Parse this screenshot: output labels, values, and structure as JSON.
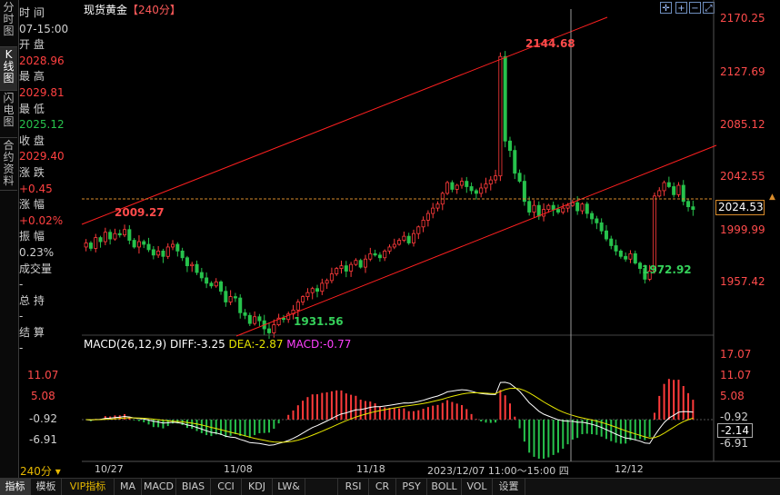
{
  "left_tabs": [
    "分时图",
    "K线图",
    "闪电图",
    "合约资料"
  ],
  "info": {
    "time_label": "时 间",
    "time_value": "07-15:00",
    "open_label": "开 盘",
    "open_value": "2028.96",
    "high_label": "最 高",
    "high_value": "2029.81",
    "low_label": "最 低",
    "low_value": "2025.12",
    "close_label": "收 盘",
    "close_value": "2029.40",
    "change_label": "涨 跌",
    "change_value": "+0.45",
    "pct_label": "涨 幅",
    "pct_value": "+0.02%",
    "amp_label": "振 幅",
    "amp_value": "0.23%",
    "vol_label": "成交量",
    "vol_value": "-",
    "oi_label": "总 持",
    "oi_value": "-",
    "settle_label": "结 算",
    "settle_value": "-"
  },
  "title": {
    "name": "现货黄金",
    "period": "【240分】"
  },
  "price_axis": [
    "2170.25",
    "2127.69",
    "2085.12",
    "2042.55",
    "1999.99",
    "1957.42"
  ],
  "current_price": "2024.53",
  "annotations": {
    "high": "2144.68",
    "left": "2009.27",
    "low1": "1931.56",
    "low2": "1972.92"
  },
  "macd_legend": {
    "name": "MACD(26,12,9)",
    "diff": "DIFF:-3.25",
    "dea": "DEA:-2.87",
    "macd": "MACD:-0.77"
  },
  "macd_axis_left": [
    "11.07",
    "5.08",
    "-0.92",
    "-6.91"
  ],
  "macd_axis_right": [
    "17.07",
    "11.07",
    "5.08",
    "-0.92",
    "-2.14",
    "-6.91"
  ],
  "date_axis": [
    "10/27",
    "11/08",
    "11/18",
    "2023/12/07 11:00～15:00 四",
    "12/12"
  ],
  "period_label": "240分",
  "bottom_tabs": [
    "指标",
    "模板",
    "VIP指标",
    "MA",
    "MACD",
    "BIAS",
    "CCI",
    "KDJ",
    "LW&",
    "RSI",
    "CR",
    "PSY",
    "BOLL",
    "VOL",
    "设置"
  ],
  "colors": {
    "up": "#ff3b3b",
    "down": "#27c24c",
    "diff": "#ffffff",
    "dea": "#e6e600",
    "macd": "#ff40ff",
    "bg": "#000000"
  },
  "chart_data": {
    "type": "candlestick",
    "price_range": [
      1936,
      2175
    ],
    "trend_lines": "red parallel channel",
    "closes": [
      2002,
      1998,
      2006,
      2003,
      2010,
      2005,
      2009,
      2008,
      2012,
      2004,
      1999,
      2003,
      2001,
      1997,
      1993,
      1996,
      1992,
      1999,
      2001,
      1996,
      1991,
      1985,
      1986,
      1980,
      1976,
      1972,
      1970,
      1973,
      1966,
      1958,
      1962,
      1961,
      1950,
      1948,
      1942,
      1947,
      1944,
      1938,
      1935,
      1941,
      1946,
      1945,
      1949,
      1952,
      1958,
      1962,
      1965,
      1968,
      1966,
      1972,
      1974,
      1979,
      1983,
      1985,
      1981,
      1986,
      1989,
      1984,
      1990,
      1994,
      1993,
      1991,
      1996,
      1999,
      2001,
      2004,
      2007,
      2002,
      2009,
      2014,
      2019,
      2024,
      2028,
      2031,
      2039,
      2047,
      2042,
      2045,
      2048,
      2044,
      2041,
      2039,
      2043,
      2046,
      2049,
      2052,
      2141,
      2078,
      2071,
      2054,
      2048,
      2033,
      2025,
      2030,
      2022,
      2027,
      2030,
      2027,
      2025,
      2028,
      2030,
      2032,
      2026,
      2031,
      2024,
      2020,
      2017,
      2011,
      2005,
      2000,
      1996,
      1992,
      1990,
      1994,
      1987,
      1983,
      1975,
      1981,
      2037,
      2041,
      2047,
      2044,
      2038,
      2045,
      2033,
      2029,
      2027
    ]
  }
}
